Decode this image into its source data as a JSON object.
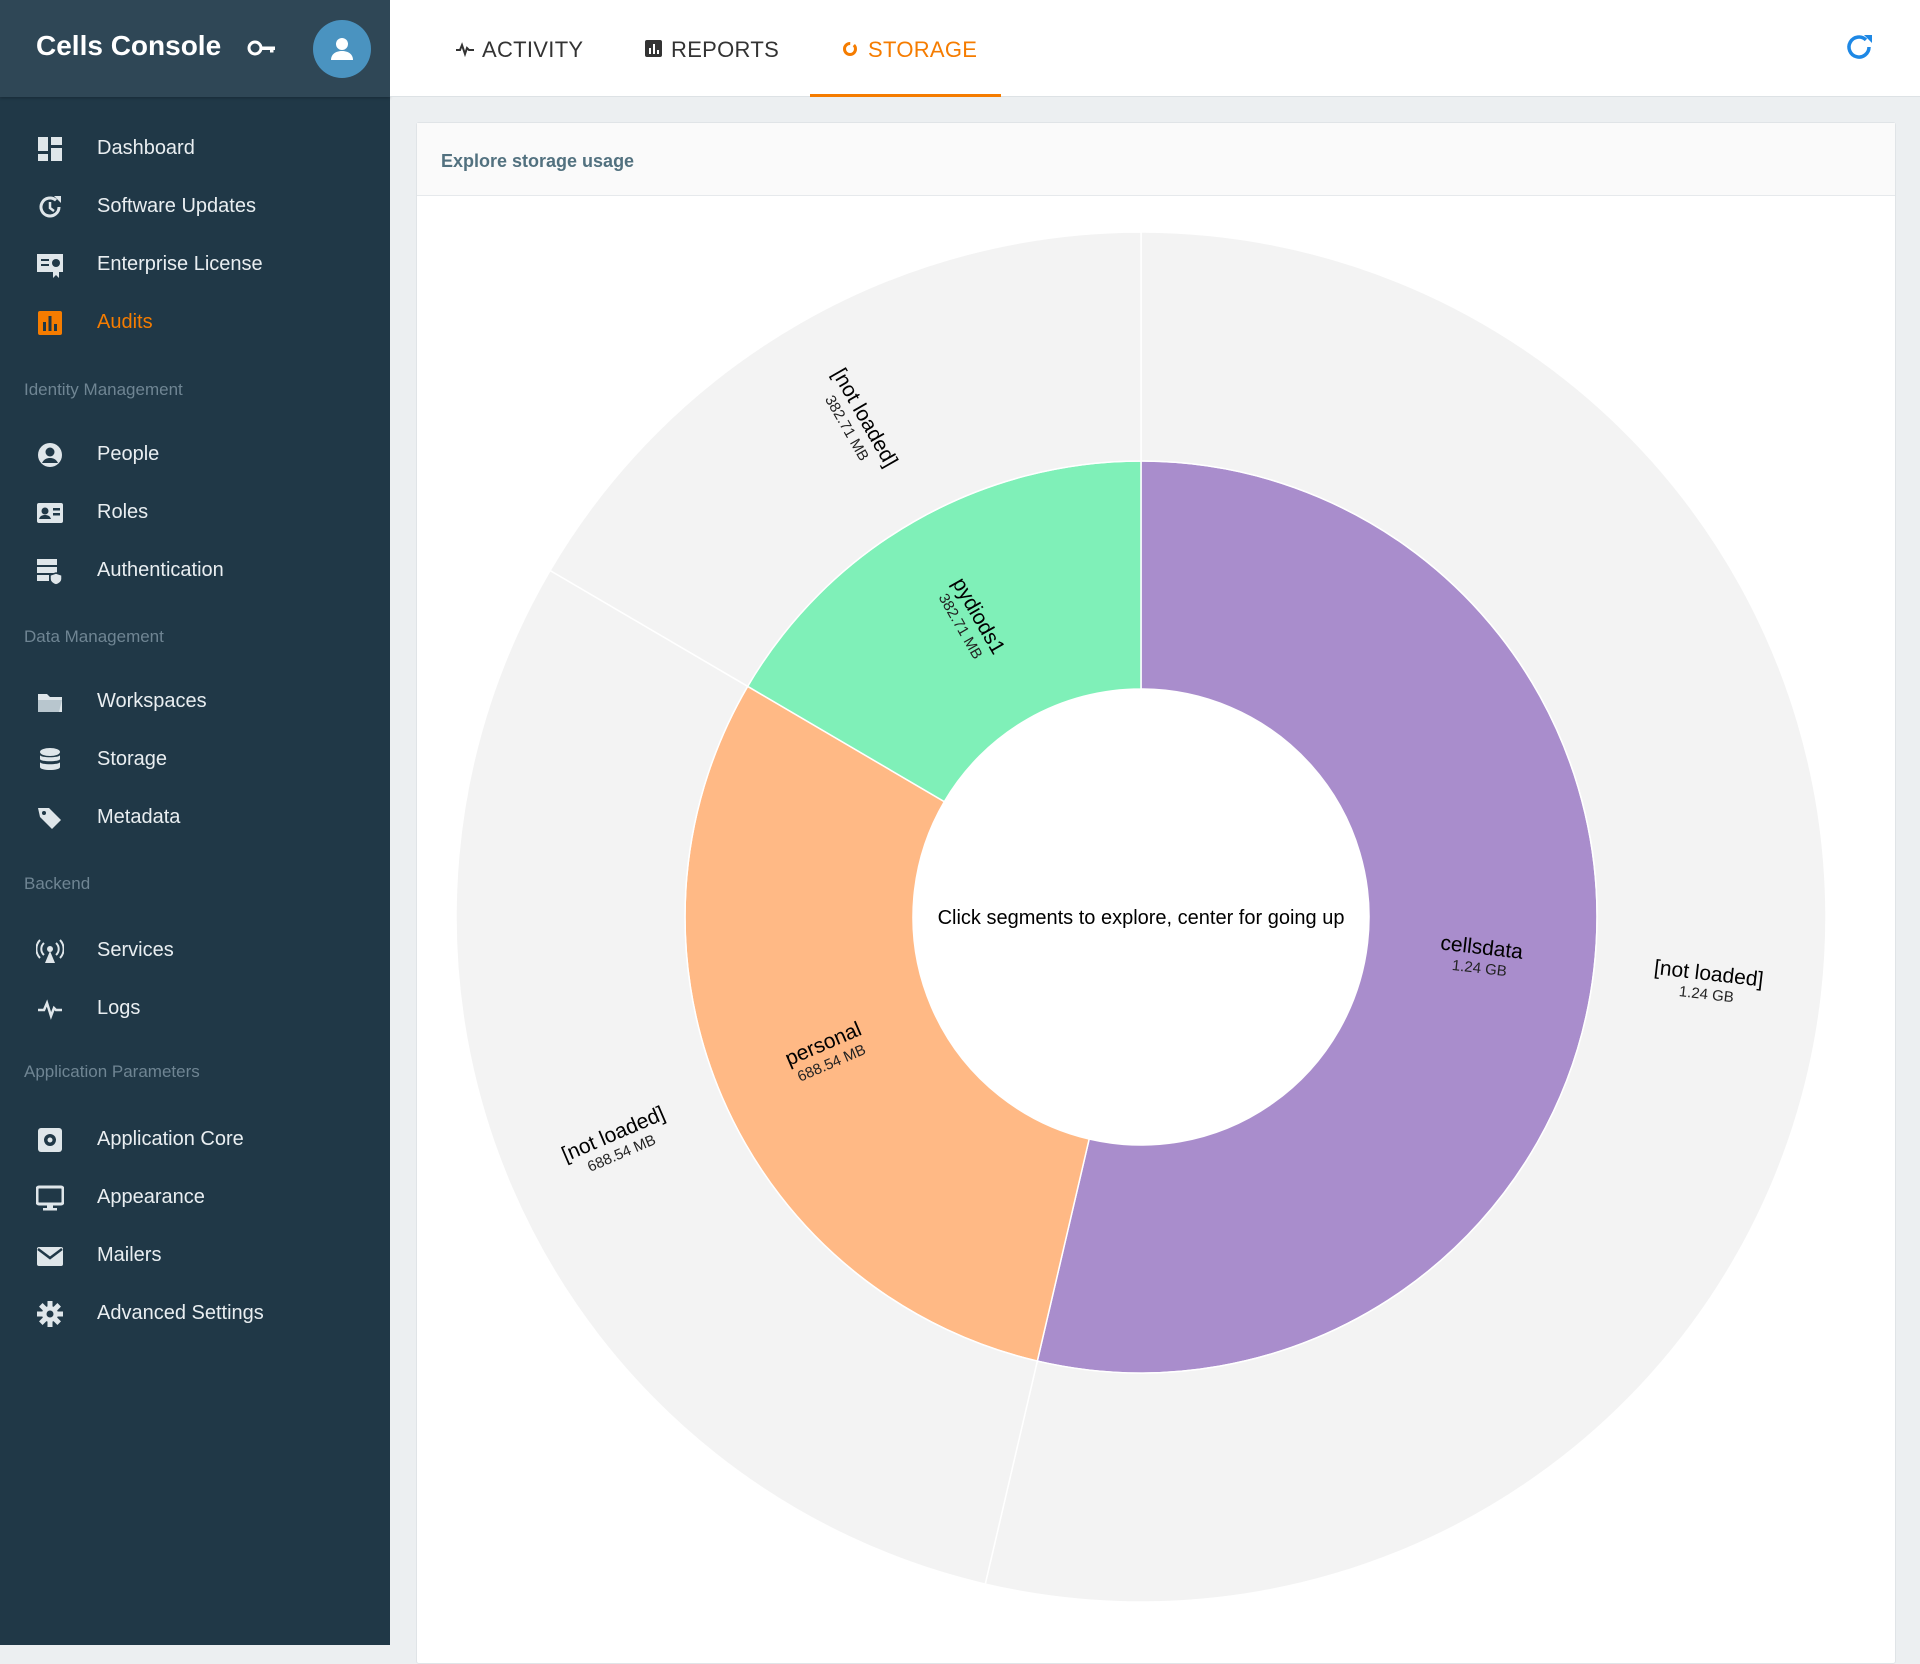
{
  "app": {
    "title": "Cells Console"
  },
  "sidebar": {
    "groups": [
      {
        "title": "",
        "items": [
          {
            "label": "Dashboard",
            "icon": "dashboard-icon"
          },
          {
            "label": "Software Updates",
            "icon": "update-icon"
          },
          {
            "label": "Enterprise License",
            "icon": "license-icon"
          },
          {
            "label": "Audits",
            "icon": "chart-icon",
            "active": true
          }
        ]
      },
      {
        "title": "Identity Management",
        "items": [
          {
            "label": "People",
            "icon": "person-icon"
          },
          {
            "label": "Roles",
            "icon": "id-card-icon"
          },
          {
            "label": "Authentication",
            "icon": "server-shield-icon"
          }
        ]
      },
      {
        "title": "Data Management",
        "items": [
          {
            "label": "Workspaces",
            "icon": "folder-icon"
          },
          {
            "label": "Storage",
            "icon": "database-icon"
          },
          {
            "label": "Metadata",
            "icon": "tags-icon"
          }
        ]
      },
      {
        "title": "Backend",
        "items": [
          {
            "label": "Services",
            "icon": "antenna-icon"
          },
          {
            "label": "Logs",
            "icon": "pulse-icon"
          }
        ]
      },
      {
        "title": "Application Parameters",
        "items": [
          {
            "label": "Application Core",
            "icon": "core-settings-icon"
          },
          {
            "label": "Appearance",
            "icon": "monitor-icon"
          },
          {
            "label": "Mailers",
            "icon": "mail-icon"
          },
          {
            "label": "Advanced Settings",
            "icon": "gear-icon"
          }
        ]
      }
    ]
  },
  "tabs": [
    {
      "label": "ACTIVITY",
      "icon": "pulse-icon"
    },
    {
      "label": "REPORTS",
      "icon": "chart-icon"
    },
    {
      "label": "STORAGE",
      "icon": "donut-icon",
      "active": true
    }
  ],
  "colors": {
    "accent": "#f57c00",
    "sidebar": "#203847",
    "refresh": "#1e88e5"
  },
  "card": {
    "title": "Explore storage usage"
  },
  "chart_data": {
    "type": "sunburst",
    "center_text": "Click segments to explore, center for going up",
    "rings": [
      {
        "level": 1,
        "segments": [
          {
            "name": "cellsdata",
            "value_gb": 1.24,
            "label": "1.24 GB",
            "color": "#a98dcc"
          },
          {
            "name": "personal",
            "value_gb": 0.68854,
            "label": "688.54 MB",
            "color": "#ffb985"
          },
          {
            "name": "pydiods1",
            "value_gb": 0.38271,
            "label": "382.71 MB",
            "color": "#7ff0b8"
          }
        ]
      },
      {
        "level": 2,
        "segments": [
          {
            "name": "[not loaded]",
            "value_gb": 1.24,
            "label": "1.24 GB",
            "color": "#f3f3f3"
          },
          {
            "name": "[not loaded]",
            "value_gb": 0.68854,
            "label": "688.54 MB",
            "color": "#f3f3f3"
          },
          {
            "name": "[not loaded]",
            "value_gb": 0.38271,
            "label": "382.71 MB",
            "color": "#f3f3f3"
          }
        ]
      }
    ]
  }
}
